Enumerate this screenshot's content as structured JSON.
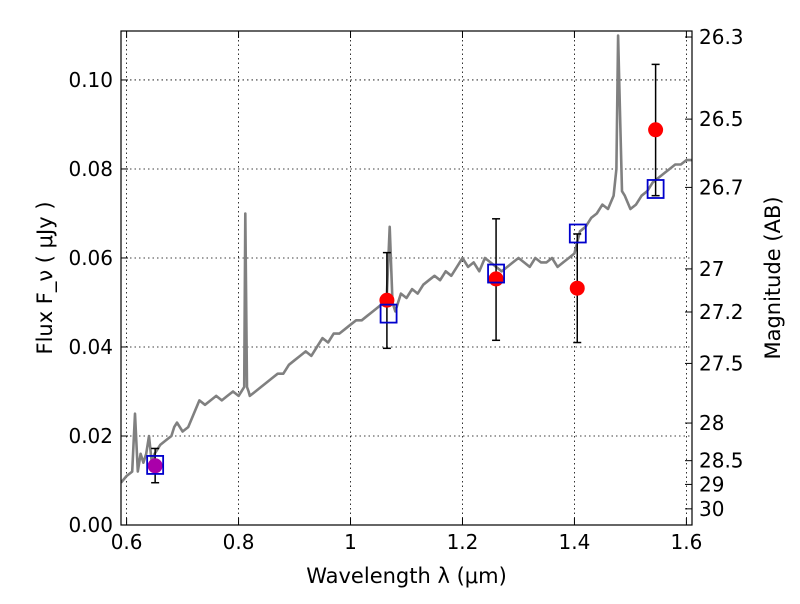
{
  "chart_data": {
    "type": "scatter",
    "xlabel": "Wavelength  λ (μm)",
    "ylabel": "Flux  F_ν  ( μJy )",
    "ylabel_right": "Magnitude (AB)",
    "xlim": [
      0.59,
      1.61
    ],
    "ylim": [
      0.0,
      0.111
    ],
    "x_ticks": [
      0.6,
      0.8,
      1.0,
      1.2,
      1.4,
      1.6
    ],
    "x_tick_labels": [
      "0.6",
      "0.8",
      "1",
      "1.2",
      "1.4",
      "1.6"
    ],
    "y_ticks": [
      0.0,
      0.02,
      0.04,
      0.06,
      0.08,
      0.1
    ],
    "y_tick_labels": [
      "0.00",
      "0.02",
      "0.04",
      "0.06",
      "0.08",
      "0.10"
    ],
    "right_ticks": [
      26.3,
      26.5,
      26.7,
      27,
      27.2,
      27.5,
      28,
      28.5,
      29,
      30
    ],
    "right_tick_labels": [
      "26.3",
      "26.5",
      "26.7",
      "27",
      "27.2",
      "27.5",
      "28",
      "28.5",
      "29",
      "30"
    ],
    "grid": true,
    "series": [
      {
        "kind": "line",
        "color": "#808080",
        "x": [
          0.59,
          0.6,
          0.61,
          0.615,
          0.62,
          0.625,
          0.63,
          0.635,
          0.64,
          0.645,
          0.65,
          0.66,
          0.67,
          0.68,
          0.685,
          0.69,
          0.7,
          0.71,
          0.72,
          0.73,
          0.74,
          0.75,
          0.76,
          0.77,
          0.78,
          0.79,
          0.8,
          0.805,
          0.81,
          0.812,
          0.815,
          0.818,
          0.82,
          0.83,
          0.84,
          0.85,
          0.86,
          0.87,
          0.88,
          0.89,
          0.9,
          0.91,
          0.92,
          0.93,
          0.94,
          0.95,
          0.96,
          0.97,
          0.98,
          0.99,
          1.0,
          1.01,
          1.02,
          1.03,
          1.04,
          1.05,
          1.06,
          1.065,
          1.07,
          1.075,
          1.08,
          1.09,
          1.1,
          1.11,
          1.12,
          1.13,
          1.14,
          1.15,
          1.16,
          1.17,
          1.18,
          1.19,
          1.2,
          1.21,
          1.22,
          1.23,
          1.24,
          1.25,
          1.26,
          1.27,
          1.28,
          1.29,
          1.3,
          1.31,
          1.32,
          1.33,
          1.34,
          1.35,
          1.36,
          1.37,
          1.38,
          1.39,
          1.4,
          1.41,
          1.42,
          1.43,
          1.44,
          1.45,
          1.46,
          1.47,
          1.475,
          1.478,
          1.482,
          1.485,
          1.49,
          1.5,
          1.51,
          1.52,
          1.53,
          1.54,
          1.55,
          1.56,
          1.57,
          1.58,
          1.59,
          1.6,
          1.61
        ],
        "y": [
          0.0095,
          0.011,
          0.012,
          0.025,
          0.012,
          0.016,
          0.014,
          0.016,
          0.02,
          0.014,
          0.016,
          0.018,
          0.019,
          0.02,
          0.022,
          0.023,
          0.021,
          0.022,
          0.025,
          0.028,
          0.027,
          0.028,
          0.029,
          0.028,
          0.029,
          0.03,
          0.029,
          0.03,
          0.031,
          0.07,
          0.031,
          0.03,
          0.029,
          0.03,
          0.031,
          0.032,
          0.033,
          0.034,
          0.034,
          0.036,
          0.037,
          0.038,
          0.039,
          0.038,
          0.04,
          0.042,
          0.041,
          0.043,
          0.043,
          0.044,
          0.045,
          0.046,
          0.046,
          0.047,
          0.048,
          0.049,
          0.05,
          0.052,
          0.067,
          0.05,
          0.048,
          0.052,
          0.051,
          0.053,
          0.052,
          0.054,
          0.055,
          0.056,
          0.055,
          0.057,
          0.056,
          0.058,
          0.06,
          0.058,
          0.059,
          0.057,
          0.06,
          0.059,
          0.058,
          0.057,
          0.058,
          0.059,
          0.06,
          0.059,
          0.058,
          0.06,
          0.059,
          0.059,
          0.06,
          0.058,
          0.059,
          0.06,
          0.061,
          0.066,
          0.067,
          0.069,
          0.07,
          0.072,
          0.071,
          0.074,
          0.08,
          0.11,
          0.09,
          0.075,
          0.074,
          0.071,
          0.072,
          0.074,
          0.075,
          0.077,
          0.078,
          0.079,
          0.08,
          0.081,
          0.081,
          0.082,
          0.082
        ]
      },
      {
        "kind": "points",
        "marker": "circle-filled",
        "color": "#ff0000",
        "x": [
          1.065,
          1.26,
          1.405,
          1.545
        ],
        "y": [
          0.0505,
          0.0553,
          0.0532,
          0.0888
        ],
        "yerr_low": [
          0.0397,
          0.0415,
          0.041,
          0.074
        ],
        "yerr_high": [
          0.0612,
          0.0688,
          0.0654,
          0.1035
        ]
      },
      {
        "kind": "points",
        "marker": "circle-filled",
        "color": "#aa00aa",
        "x": [
          0.651
        ],
        "y": [
          0.0133
        ],
        "yerr_low": [
          0.0095
        ],
        "yerr_high": [
          0.0172
        ]
      },
      {
        "kind": "points",
        "marker": "square-open",
        "color": "#0000cc",
        "x": [
          0.651,
          1.068,
          1.26,
          1.406,
          1.545
        ],
        "y": [
          0.0135,
          0.0475,
          0.0565,
          0.0655,
          0.0755
        ]
      }
    ]
  }
}
